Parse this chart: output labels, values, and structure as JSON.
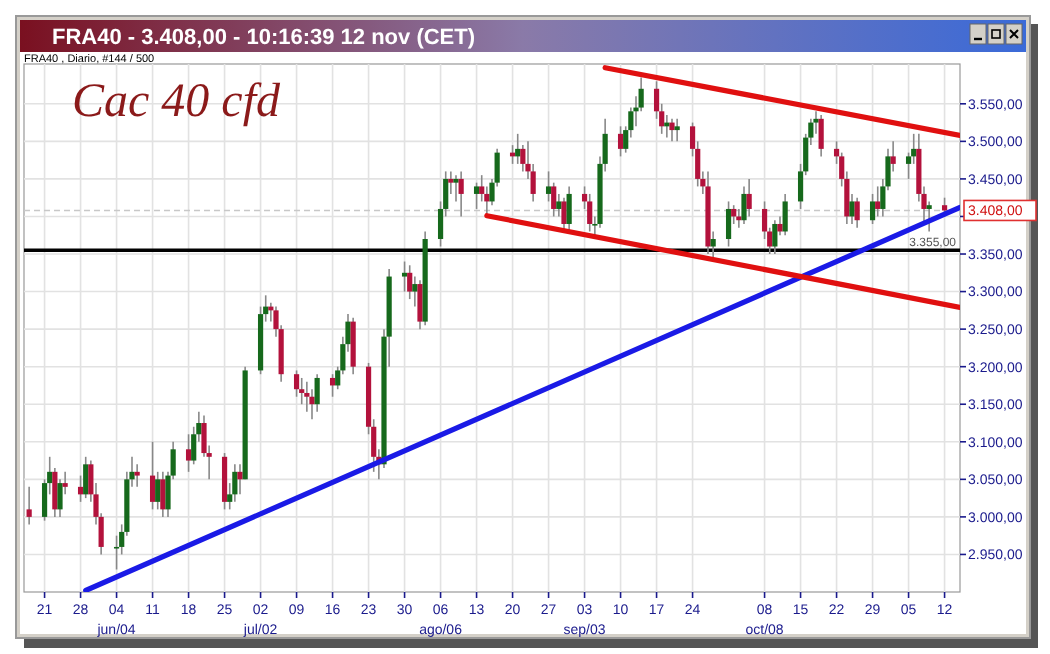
{
  "chart_data": {
    "type": "candlestick",
    "title": "FRA40 - 3.408,00 - 10:16:39  12 nov (CET)",
    "subtitle": "FRA40 , Diario, #144 / 500",
    "annotations": [
      "Cac 40 cfd"
    ],
    "x": [
      "--05-18",
      "--05-21",
      "--05-22",
      "--05-23",
      "--05-24",
      "--05-25",
      "--05-28",
      "--05-29",
      "--05-30",
      "--05-31",
      "--06-01",
      "--06-04",
      "--06-05",
      "--06-06",
      "--06-07",
      "--06-08",
      "--06-11",
      "--06-12",
      "--06-13",
      "--06-14",
      "--06-15",
      "--06-18",
      "--06-19",
      "--06-20",
      "--06-21",
      "--06-22",
      "--06-25",
      "--06-26",
      "--06-27",
      "--06-28",
      "--06-29",
      "--07-02",
      "--07-03",
      "--07-04",
      "--07-05",
      "--07-06",
      "--07-09",
      "--07-10",
      "--07-11",
      "--07-12",
      "--07-13",
      "--07-16",
      "--07-17",
      "--07-18",
      "--07-19",
      "--07-20",
      "--07-23",
      "--07-24",
      "--07-25",
      "--07-26",
      "--07-27",
      "--07-30",
      "--07-31",
      "--08-01",
      "--08-02",
      "--08-03",
      "--08-06",
      "--08-07",
      "--08-08",
      "--08-09",
      "--08-10",
      "--08-13",
      "--08-14",
      "--08-15",
      "--08-16",
      "--08-17",
      "--08-20",
      "--08-21",
      "--08-22",
      "--08-23",
      "--08-24",
      "--08-27",
      "--08-28",
      "--08-29",
      "--08-30",
      "--08-31",
      "--09-03",
      "--09-04",
      "--09-05",
      "--09-06",
      "--09-07",
      "--09-10",
      "--09-11",
      "--09-12",
      "--09-13",
      "--09-14",
      "--09-17",
      "--09-18",
      "--09-19",
      "--09-20",
      "--09-21",
      "--09-24",
      "--09-25",
      "--09-26",
      "--09-27",
      "--09-28",
      "--10-01",
      "--10-02",
      "--10-03",
      "--10-04",
      "--10-05",
      "--10-08",
      "--10-09",
      "--10-10",
      "--10-11",
      "--10-12",
      "--10-15",
      "--10-16",
      "--10-17",
      "--10-18",
      "--10-19",
      "--10-22",
      "--10-23",
      "--10-24",
      "--10-25",
      "--10-26",
      "--10-29",
      "--10-30",
      "--10-31",
      "--11-01",
      "--11-02",
      "--11-05",
      "--11-06",
      "--11-07",
      "--11-08",
      "--11-09",
      "--11-12"
    ],
    "ohlc": [
      [
        3010,
        3040,
        2990,
        3000
      ],
      [
        3000,
        3050,
        2995,
        3045
      ],
      [
        3045,
        3080,
        3030,
        3060
      ],
      [
        3060,
        3065,
        3000,
        3010
      ],
      [
        3010,
        3050,
        3000,
        3045
      ],
      [
        3045,
        3060,
        3030,
        3040
      ],
      [
        3040,
        3055,
        3020,
        3030
      ],
      [
        3030,
        3080,
        3025,
        3070
      ],
      [
        3070,
        3075,
        3020,
        3030
      ],
      [
        3030,
        3045,
        2990,
        3000
      ],
      [
        3000,
        3005,
        2950,
        2960
      ],
      [
        2960,
        2975,
        2930,
        2960
      ],
      [
        2960,
        2990,
        2950,
        2980
      ],
      [
        2980,
        3060,
        2975,
        3050
      ],
      [
        3050,
        3080,
        3040,
        3060
      ],
      [
        3060,
        3070,
        3040,
        3055
      ],
      [
        3055,
        3100,
        3010,
        3020
      ],
      [
        3020,
        3060,
        3010,
        3050
      ],
      [
        3050,
        3060,
        3000,
        3010
      ],
      [
        3010,
        3060,
        3000,
        3055
      ],
      [
        3055,
        3100,
        3050,
        3090
      ],
      [
        3090,
        3110,
        3060,
        3075
      ],
      [
        3075,
        3120,
        3070,
        3110
      ],
      [
        3110,
        3140,
        3100,
        3125
      ],
      [
        3125,
        3135,
        3080,
        3085
      ],
      [
        3085,
        3095,
        3050,
        3080
      ],
      [
        3080,
        3085,
        3010,
        3020
      ],
      [
        3020,
        3045,
        3010,
        3030
      ],
      [
        3030,
        3070,
        3020,
        3060
      ],
      [
        3060,
        3070,
        3030,
        3050
      ],
      [
        3050,
        3200,
        3050,
        3195
      ],
      [
        3195,
        3280,
        3190,
        3270
      ],
      [
        3270,
        3295,
        3260,
        3280
      ],
      [
        3280,
        3285,
        3260,
        3275
      ],
      [
        3275,
        3280,
        3240,
        3250
      ],
      [
        3250,
        3255,
        3180,
        3190
      ],
      [
        3190,
        3195,
        3160,
        3170
      ],
      [
        3170,
        3185,
        3150,
        3165
      ],
      [
        3165,
        3180,
        3140,
        3160
      ],
      [
        3160,
        3170,
        3130,
        3150
      ],
      [
        3150,
        3190,
        3140,
        3185
      ],
      [
        3185,
        3190,
        3160,
        3175
      ],
      [
        3175,
        3200,
        3170,
        3195
      ],
      [
        3195,
        3240,
        3190,
        3230
      ],
      [
        3230,
        3270,
        3220,
        3260
      ],
      [
        3260,
        3265,
        3190,
        3200
      ],
      [
        3200,
        3205,
        3110,
        3120
      ],
      [
        3120,
        3130,
        3060,
        3080
      ],
      [
        3080,
        3090,
        3050,
        3070
      ],
      [
        3070,
        3250,
        3065,
        3240
      ],
      [
        3240,
        3330,
        3200,
        3320
      ],
      [
        3320,
        3340,
        3300,
        3325
      ],
      [
        3325,
        3335,
        3290,
        3300
      ],
      [
        3300,
        3320,
        3280,
        3310
      ],
      [
        3310,
        3315,
        3250,
        3260
      ],
      [
        3260,
        3380,
        3255,
        3370
      ],
      [
        3370,
        3420,
        3360,
        3410
      ],
      [
        3410,
        3460,
        3400,
        3450
      ],
      [
        3450,
        3460,
        3430,
        3445
      ],
      [
        3445,
        3455,
        3420,
        3450
      ],
      [
        3450,
        3460,
        3400,
        3430
      ],
      [
        3430,
        3445,
        3410,
        3440
      ],
      [
        3440,
        3455,
        3420,
        3430
      ],
      [
        3430,
        3440,
        3400,
        3420
      ],
      [
        3420,
        3450,
        3415,
        3445
      ],
      [
        3445,
        3490,
        3440,
        3485
      ],
      [
        3485,
        3495,
        3470,
        3480
      ],
      [
        3480,
        3510,
        3470,
        3490
      ],
      [
        3490,
        3495,
        3460,
        3470
      ],
      [
        3470,
        3500,
        3450,
        3460
      ],
      [
        3460,
        3470,
        3420,
        3430
      ],
      [
        3430,
        3460,
        3420,
        3440
      ],
      [
        3440,
        3445,
        3400,
        3410
      ],
      [
        3410,
        3430,
        3400,
        3420
      ],
      [
        3420,
        3425,
        3380,
        3390
      ],
      [
        3390,
        3440,
        3380,
        3430
      ],
      [
        3430,
        3440,
        3410,
        3420
      ],
      [
        3420,
        3430,
        3380,
        3390
      ],
      [
        3390,
        3400,
        3375,
        3390
      ],
      [
        3390,
        3480,
        3385,
        3470
      ],
      [
        3470,
        3530,
        3460,
        3510
      ],
      [
        3510,
        3520,
        3480,
        3490
      ],
      [
        3490,
        3520,
        3485,
        3515
      ],
      [
        3515,
        3545,
        3505,
        3540
      ],
      [
        3540,
        3560,
        3520,
        3545
      ],
      [
        3545,
        3585,
        3540,
        3570
      ],
      [
        3570,
        3580,
        3530,
        3540
      ],
      [
        3540,
        3550,
        3510,
        3520
      ],
      [
        3520,
        3535,
        3505,
        3525
      ],
      [
        3525,
        3530,
        3500,
        3515
      ],
      [
        3515,
        3530,
        3500,
        3520
      ],
      [
        3520,
        3525,
        3480,
        3490
      ],
      [
        3490,
        3500,
        3440,
        3450
      ],
      [
        3450,
        3460,
        3430,
        3440
      ],
      [
        3440,
        3460,
        3350,
        3360
      ],
      [
        3360,
        3380,
        3345,
        3370
      ],
      [
        3370,
        3420,
        3360,
        3410
      ],
      [
        3410,
        3415,
        3390,
        3400
      ],
      [
        3400,
        3410,
        3385,
        3395
      ],
      [
        3395,
        3440,
        3390,
        3430
      ],
      [
        3430,
        3450,
        3400,
        3410
      ],
      [
        3410,
        3420,
        3370,
        3380
      ],
      [
        3380,
        3385,
        3350,
        3360
      ],
      [
        3360,
        3395,
        3350,
        3390
      ],
      [
        3390,
        3400,
        3375,
        3380
      ],
      [
        3380,
        3430,
        3375,
        3420
      ],
      [
        3420,
        3470,
        3410,
        3460
      ],
      [
        3460,
        3510,
        3455,
        3505
      ],
      [
        3505,
        3530,
        3495,
        3525
      ],
      [
        3525,
        3540,
        3510,
        3530
      ],
      [
        3530,
        3535,
        3480,
        3490
      ],
      [
        3490,
        3500,
        3470,
        3480
      ],
      [
        3480,
        3485,
        3440,
        3450
      ],
      [
        3450,
        3460,
        3390,
        3400
      ],
      [
        3400,
        3430,
        3390,
        3420
      ],
      [
        3420,
        3425,
        3385,
        3395
      ],
      [
        3395,
        3430,
        3390,
        3420
      ],
      [
        3420,
        3440,
        3400,
        3410
      ],
      [
        3410,
        3450,
        3400,
        3440
      ],
      [
        3440,
        3490,
        3435,
        3480
      ],
      [
        3480,
        3500,
        3460,
        3470
      ],
      [
        3470,
        3485,
        3450,
        3480
      ],
      [
        3480,
        3510,
        3470,
        3490
      ],
      [
        3490,
        3510,
        3420,
        3430
      ],
      [
        3430,
        3440,
        3390,
        3410
      ],
      [
        3410,
        3420,
        3380,
        3415
      ],
      [
        3415,
        3425,
        3400,
        3408
      ]
    ],
    "series": [
      {
        "type": "line",
        "x": [
          "--05-29",
          "--11-15"
        ],
        "values": [
          2902,
          3412
        ],
        "color": "#1a1ae6"
      },
      {
        "type": "line",
        "x": [
          "--09-07",
          "--11-15"
        ],
        "values": [
          3598,
          3508
        ],
        "color": "#e01010"
      },
      {
        "type": "line",
        "x": [
          "--08-15",
          "--11-15"
        ],
        "values": [
          3401,
          3279
        ],
        "color": "#e01010"
      }
    ],
    "ref_lines": [
      {
        "axis": "y",
        "value": 3355,
        "label": "3.355,00",
        "color": "#000000",
        "line_style": "solid"
      },
      {
        "axis": "y",
        "value": 3408,
        "label": "3.408,00",
        "color": "#c8c8c8",
        "line_style": "dashed"
      }
    ],
    "xlim": [
      "--05-17",
      "--11-15"
    ],
    "ylim": [
      2900,
      3603
    ],
    "xticks": [
      {
        "value": "--05-21",
        "label": "21"
      },
      {
        "value": "--05-28",
        "label": "28"
      },
      {
        "value": "--06-04",
        "label": "04\njun/04"
      },
      {
        "value": "--06-11",
        "label": "11"
      },
      {
        "value": "--06-18",
        "label": "18"
      },
      {
        "value": "--06-25",
        "label": "25"
      },
      {
        "value": "--07-02",
        "label": "02\njul/02"
      },
      {
        "value": "--07-09",
        "label": "09"
      },
      {
        "value": "--07-16",
        "label": "16"
      },
      {
        "value": "--07-23",
        "label": "23"
      },
      {
        "value": "--07-30",
        "label": "30"
      },
      {
        "value": "--08-06",
        "label": "06\nago/06"
      },
      {
        "value": "--08-13",
        "label": "13"
      },
      {
        "value": "--08-20",
        "label": "20"
      },
      {
        "value": "--08-27",
        "label": "27"
      },
      {
        "value": "--09-03",
        "label": "03\nsep/03"
      },
      {
        "value": "--09-10",
        "label": "10"
      },
      {
        "value": "--09-17",
        "label": "17"
      },
      {
        "value": "--09-24",
        "label": "24"
      },
      {
        "value": "--10-08",
        "label": "08\noct/08"
      },
      {
        "value": "--10-15",
        "label": "15"
      },
      {
        "value": "--10-22",
        "label": "22"
      },
      {
        "value": "--10-29",
        "label": "29"
      },
      {
        "value": "--11-05",
        "label": "05"
      },
      {
        "value": "--11-12",
        "label": "12"
      }
    ],
    "yticks": [
      {
        "value": 2950,
        "label": "2.950,00"
      },
      {
        "value": 3000,
        "label": "3.000,00"
      },
      {
        "value": 3050,
        "label": "3.050,00"
      },
      {
        "value": 3100,
        "label": "3.100,00"
      },
      {
        "value": 3150,
        "label": "3.150,00"
      },
      {
        "value": 3200,
        "label": "3.200,00"
      },
      {
        "value": 3250,
        "label": "3.250,00"
      },
      {
        "value": 3300,
        "label": "3.300,00"
      },
      {
        "value": 3350,
        "label": "3.350,00"
      },
      {
        "value": 3400,
        "label": null
      },
      {
        "value": 3450,
        "label": "3.450,00"
      },
      {
        "value": 3500,
        "label": "3.500,00"
      },
      {
        "value": 3550,
        "label": "3.550,00"
      }
    ],
    "grid": true
  }
}
